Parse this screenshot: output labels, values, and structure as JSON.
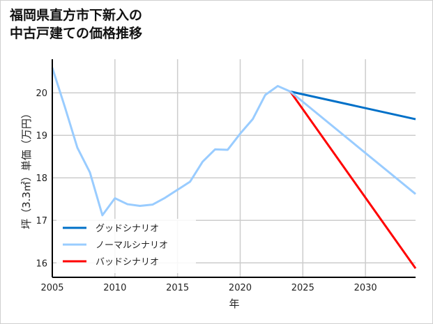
{
  "chart_data": {
    "type": "line",
    "title_lines": [
      "福岡県直方市下新入の",
      "中古戸建ての価格推移"
    ],
    "xlabel": "年",
    "ylabel": "坪（3.3㎡）単価（万円）",
    "xlim": [
      2005,
      2034
    ],
    "ylim": [
      15.66,
      20.79
    ],
    "xticks": [
      2005,
      2010,
      2015,
      2020,
      2025,
      2030
    ],
    "yticks": [
      16,
      17,
      18,
      19,
      20
    ],
    "grid": true,
    "legend_position": "bottom-left",
    "series": [
      {
        "name": "グッドシナリオ",
        "color": "#0070c8",
        "x": [
          2024,
          2034
        ],
        "y": [
          20.03,
          19.38
        ]
      },
      {
        "name": "ノーマルシナリオ",
        "color": "#99ccff",
        "x": [
          2005,
          2006,
          2007,
          2008,
          2009,
          2010,
          2011,
          2012,
          2013,
          2014,
          2015,
          2016,
          2017,
          2018,
          2019,
          2020,
          2021,
          2022,
          2023,
          2024,
          2034
        ],
        "y": [
          20.59,
          19.67,
          18.71,
          18.13,
          17.12,
          17.52,
          17.38,
          17.34,
          17.37,
          17.53,
          17.72,
          17.91,
          18.38,
          18.67,
          18.66,
          19.04,
          19.38,
          19.95,
          20.16,
          20.03,
          17.62
        ]
      },
      {
        "name": "バッドシナリオ",
        "color": "#ff0000",
        "x": [
          2024,
          2034
        ],
        "y": [
          20.03,
          15.87
        ]
      }
    ]
  }
}
